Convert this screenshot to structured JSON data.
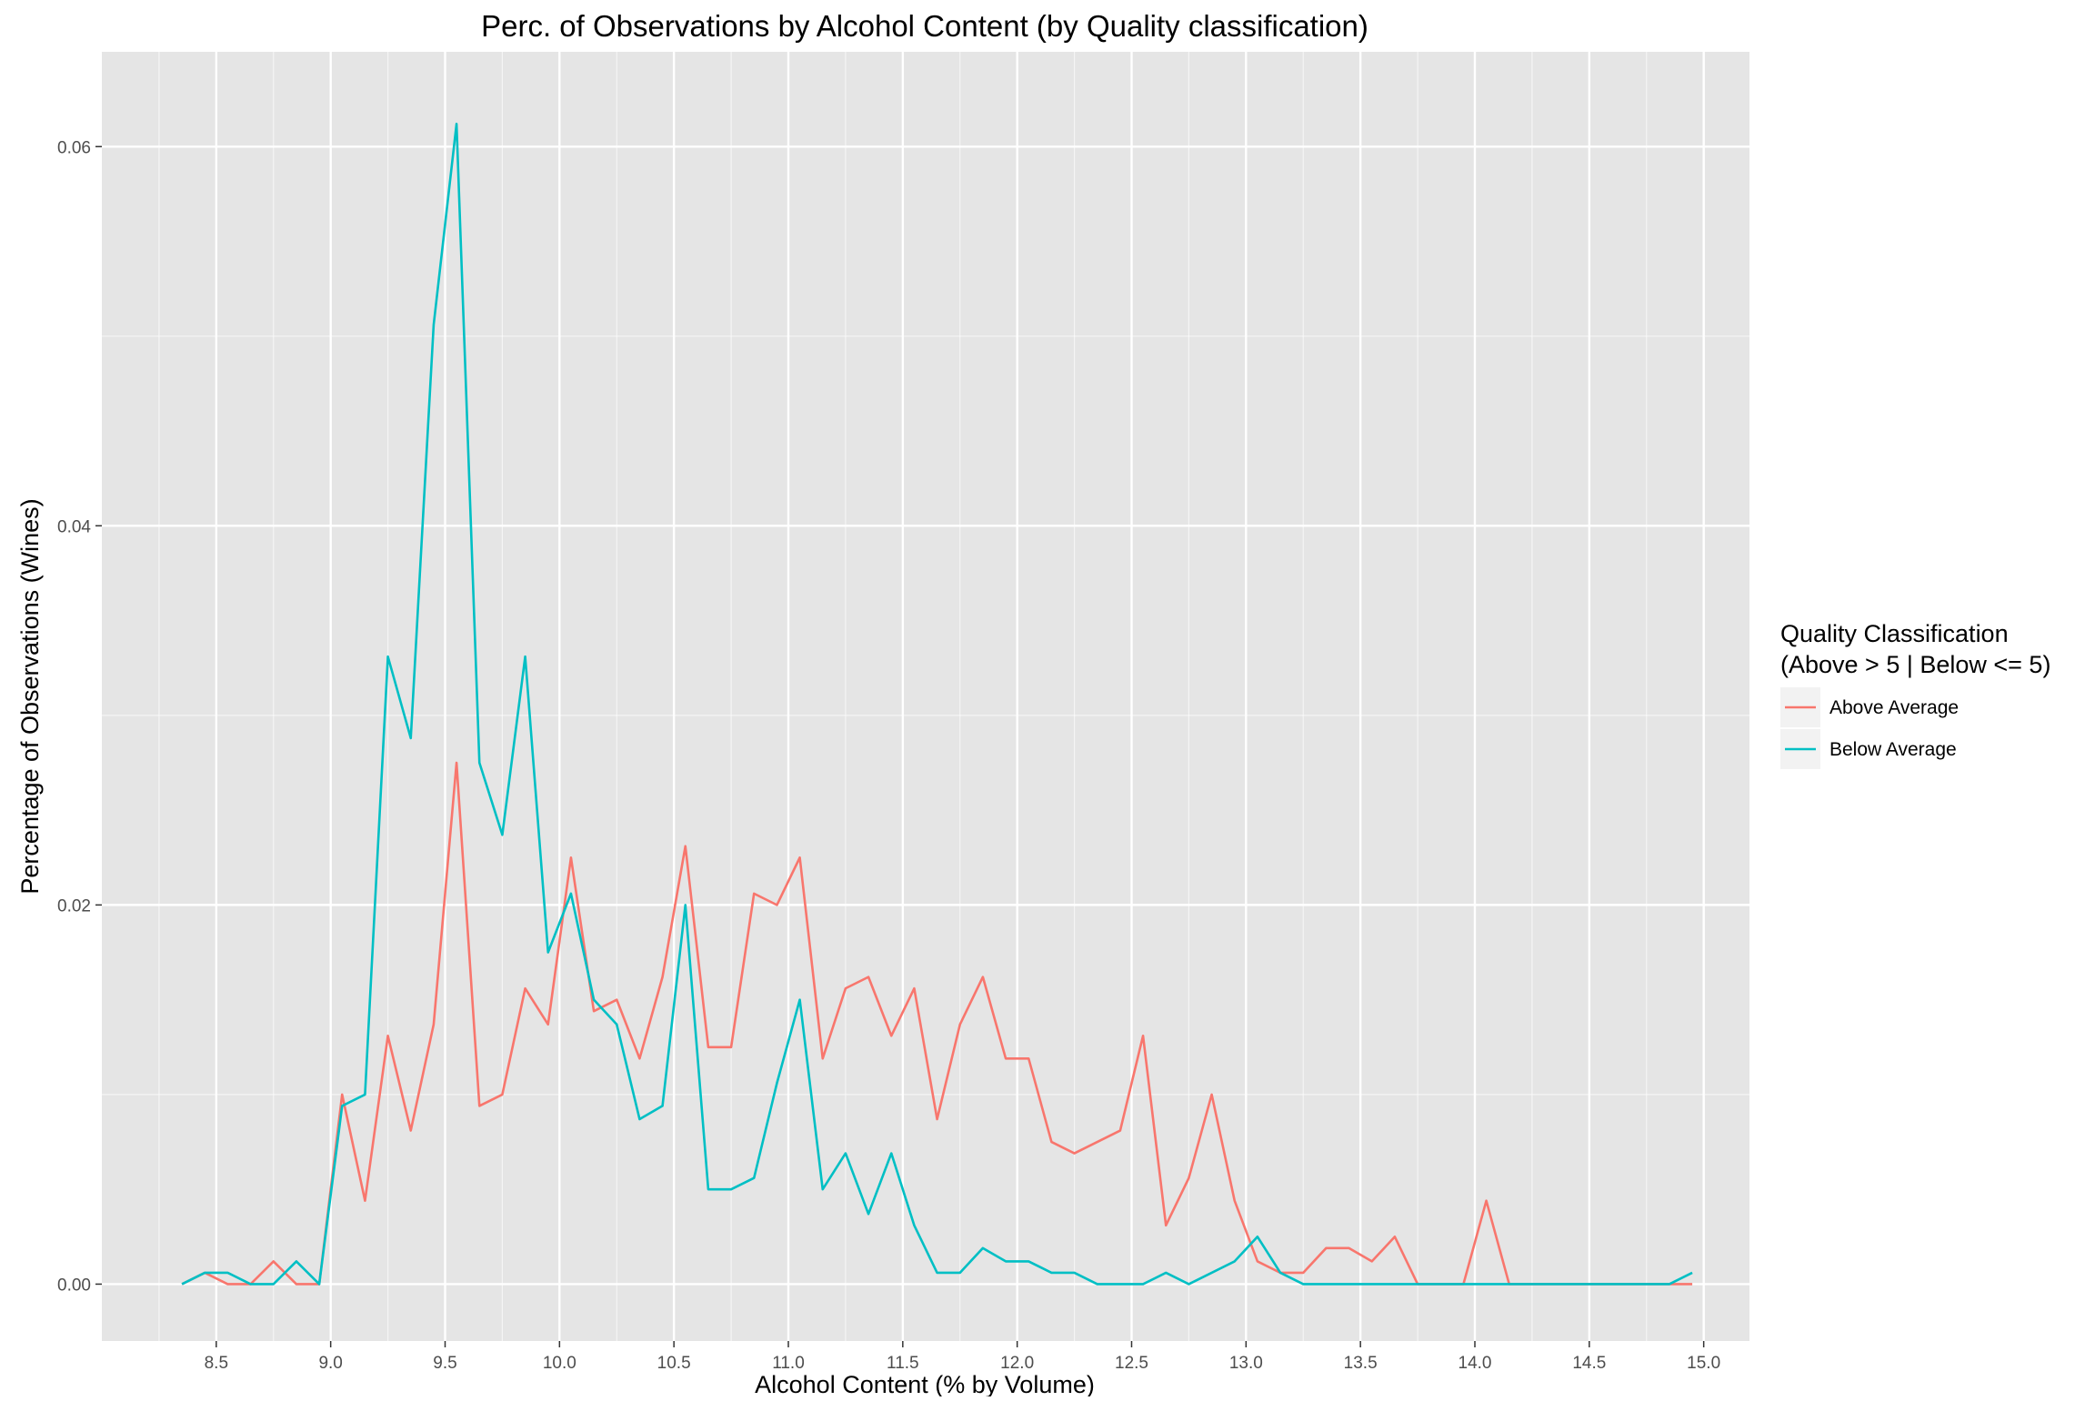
{
  "chart_data": {
    "type": "line",
    "title": "Perc. of Observations by Alcohol Content (by Quality classification)",
    "xlabel": "Alcohol Content (% by Volume)",
    "ylabel": "Percentage of Observations (Wines)",
    "xlim": [
      8.0,
      15.2
    ],
    "ylim": [
      -0.003,
      0.065
    ],
    "x_ticks": [
      8.5,
      9.0,
      9.5,
      10.0,
      10.5,
      11.0,
      11.5,
      12.0,
      12.5,
      13.0,
      13.5,
      14.0,
      14.5,
      15.0
    ],
    "x_tick_labels": [
      "8.5",
      "9.0",
      "9.5",
      "10.0",
      "10.5",
      "11.0",
      "11.5",
      "12.0",
      "12.5",
      "13.0",
      "13.5",
      "14.0",
      "14.5",
      "15.0"
    ],
    "y_ticks": [
      0.0,
      0.02,
      0.04,
      0.06
    ],
    "y_tick_labels": [
      "0.00",
      "0.02",
      "0.04",
      "0.06"
    ],
    "grid": true,
    "legend": {
      "title_line1": "Quality Classification",
      "title_line2": "(Above > 5 | Below <= 5)",
      "placement": "right"
    },
    "series": [
      {
        "name": "Above Average",
        "color": "#F8766D",
        "x": [
          8.35,
          8.45,
          8.55,
          8.65,
          8.75,
          8.85,
          8.95,
          9.05,
          9.15,
          9.25,
          9.35,
          9.45,
          9.55,
          9.65,
          9.75,
          9.85,
          9.95,
          10.05,
          10.15,
          10.25,
          10.35,
          10.45,
          10.55,
          10.65,
          10.75,
          10.85,
          10.95,
          11.05,
          11.15,
          11.25,
          11.35,
          11.45,
          11.55,
          11.65,
          11.75,
          11.85,
          11.95,
          12.05,
          12.15,
          12.25,
          12.35,
          12.45,
          12.55,
          12.65,
          12.75,
          12.85,
          12.95,
          13.05,
          13.15,
          13.25,
          13.35,
          13.45,
          13.55,
          13.65,
          13.75,
          13.85,
          13.95,
          14.05,
          14.15,
          14.25,
          14.35,
          14.45,
          14.55,
          14.65,
          14.75,
          14.85,
          14.95
        ],
        "values": [
          0.0,
          0.0006,
          0.0,
          0.0,
          0.0012,
          0.0,
          0.0,
          0.01,
          0.0044,
          0.0131,
          0.0081,
          0.0137,
          0.0275,
          0.0094,
          0.01,
          0.0156,
          0.0137,
          0.0225,
          0.0144,
          0.015,
          0.0119,
          0.0162,
          0.0231,
          0.0125,
          0.0125,
          0.0206,
          0.02,
          0.0225,
          0.0119,
          0.0156,
          0.0162,
          0.0131,
          0.0156,
          0.0087,
          0.0137,
          0.0162,
          0.0119,
          0.0119,
          0.0075,
          0.0069,
          0.0075,
          0.0081,
          0.0131,
          0.0031,
          0.0056,
          0.01,
          0.0044,
          0.0012,
          0.0006,
          0.0006,
          0.0019,
          0.0019,
          0.0012,
          0.0025,
          0.0,
          0.0,
          0.0,
          0.0044,
          0.0,
          0.0,
          0.0,
          0.0,
          0.0,
          0.0,
          0.0,
          0.0,
          0.0
        ]
      },
      {
        "name": "Below Average",
        "color": "#00BFC4",
        "x": [
          8.35,
          8.45,
          8.55,
          8.65,
          8.75,
          8.85,
          8.95,
          9.05,
          9.15,
          9.25,
          9.35,
          9.45,
          9.55,
          9.65,
          9.75,
          9.85,
          9.95,
          10.05,
          10.15,
          10.25,
          10.35,
          10.45,
          10.55,
          10.65,
          10.75,
          10.85,
          10.95,
          11.05,
          11.15,
          11.25,
          11.35,
          11.45,
          11.55,
          11.65,
          11.75,
          11.85,
          11.95,
          12.05,
          12.15,
          12.25,
          12.35,
          12.45,
          12.55,
          12.65,
          12.75,
          12.85,
          12.95,
          13.05,
          13.15,
          13.25,
          13.35,
          13.45,
          13.55,
          13.65,
          13.75,
          13.85,
          13.95,
          14.05,
          14.15,
          14.25,
          14.35,
          14.45,
          14.55,
          14.65,
          14.75,
          14.85,
          14.95
        ],
        "values": [
          0.0,
          0.0006,
          0.0006,
          0.0,
          0.0,
          0.0012,
          0.0,
          0.0094,
          0.01,
          0.0331,
          0.0288,
          0.0506,
          0.0612,
          0.0275,
          0.0237,
          0.0331,
          0.0175,
          0.0206,
          0.015,
          0.0137,
          0.0087,
          0.0094,
          0.02,
          0.005,
          0.005,
          0.0056,
          0.0106,
          0.015,
          0.005,
          0.0069,
          0.0037,
          0.0069,
          0.0031,
          0.0006,
          0.0006,
          0.0019,
          0.0012,
          0.0012,
          0.0006,
          0.0006,
          0.0,
          0.0,
          0.0,
          0.0006,
          0.0,
          0.0006,
          0.0012,
          0.0025,
          0.0006,
          0.0,
          0.0,
          0.0,
          0.0,
          0.0,
          0.0,
          0.0,
          0.0,
          0.0,
          0.0,
          0.0,
          0.0,
          0.0,
          0.0,
          0.0,
          0.0,
          0.0,
          0.0006
        ]
      }
    ]
  },
  "style": {
    "panel_background": "#E5E5E5",
    "grid_color": "#FFFFFF",
    "legend_key_background": "#F2F2F2"
  }
}
